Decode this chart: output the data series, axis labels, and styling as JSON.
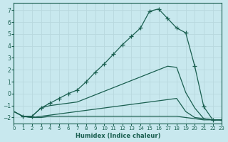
{
  "xlabel": "Humidex (Indice chaleur)",
  "background_color": "#c8e8ee",
  "grid_color": "#b8d8de",
  "line_color": "#1a5f50",
  "xlim": [
    0,
    23
  ],
  "ylim": [
    -2.5,
    7.6
  ],
  "yticks": [
    -2,
    -1,
    0,
    1,
    2,
    3,
    4,
    5,
    6,
    7
  ],
  "xticks": [
    0,
    1,
    2,
    3,
    4,
    5,
    6,
    7,
    8,
    9,
    10,
    11,
    12,
    13,
    14,
    15,
    16,
    17,
    18,
    19,
    20,
    21,
    22,
    23
  ],
  "line_top_x": [
    1,
    2,
    3,
    4,
    5,
    6,
    7,
    8,
    9,
    10,
    11,
    12,
    13,
    14,
    15,
    16,
    17,
    18,
    19,
    20,
    21,
    22,
    23
  ],
  "line_top_y": [
    -1.9,
    -1.9,
    -1.2,
    -0.8,
    -0.4,
    0.0,
    0.3,
    1.0,
    1.8,
    2.5,
    3.3,
    4.1,
    4.8,
    5.5,
    6.9,
    7.1,
    6.3,
    5.5,
    5.1,
    2.3,
    -1.1,
    -2.2,
    -2.2
  ],
  "line_mid_x": [
    0,
    1,
    2,
    3,
    4,
    5,
    6,
    7,
    8,
    9,
    10,
    11,
    12,
    13,
    14,
    15,
    16,
    17,
    18,
    19,
    20,
    21,
    22,
    23
  ],
  "line_mid_y": [
    -1.5,
    -1.9,
    -1.9,
    -1.2,
    -1.0,
    -0.9,
    -0.8,
    -0.7,
    -0.4,
    -0.1,
    0.2,
    0.5,
    0.8,
    1.1,
    1.4,
    1.7,
    2.0,
    2.3,
    2.2,
    0.1,
    -1.2,
    -2.1,
    -2.2,
    -2.2
  ],
  "line_low1_x": [
    0,
    1,
    2,
    3,
    4,
    5,
    6,
    7,
    8,
    9,
    10,
    11,
    12,
    13,
    14,
    15,
    16,
    17,
    18,
    19,
    20,
    21,
    22,
    23
  ],
  "line_low1_y": [
    -1.5,
    -1.9,
    -2.0,
    -1.9,
    -1.8,
    -1.7,
    -1.6,
    -1.5,
    -1.4,
    -1.3,
    -1.2,
    -1.1,
    -1.0,
    -0.9,
    -0.8,
    -0.7,
    -0.6,
    -0.5,
    -0.4,
    -1.5,
    -2.0,
    -2.1,
    -2.2,
    -2.2
  ],
  "line_low2_x": [
    0,
    1,
    2,
    3,
    4,
    5,
    6,
    7,
    8,
    9,
    10,
    11,
    12,
    13,
    14,
    15,
    16,
    17,
    18,
    19,
    20,
    21,
    22,
    23
  ],
  "line_low2_y": [
    -1.5,
    -1.9,
    -2.0,
    -2.0,
    -1.9,
    -1.9,
    -1.9,
    -1.9,
    -1.9,
    -1.9,
    -1.9,
    -1.9,
    -1.9,
    -1.9,
    -1.9,
    -1.9,
    -1.9,
    -1.9,
    -1.9,
    -2.0,
    -2.1,
    -2.2,
    -2.2,
    -2.2
  ]
}
